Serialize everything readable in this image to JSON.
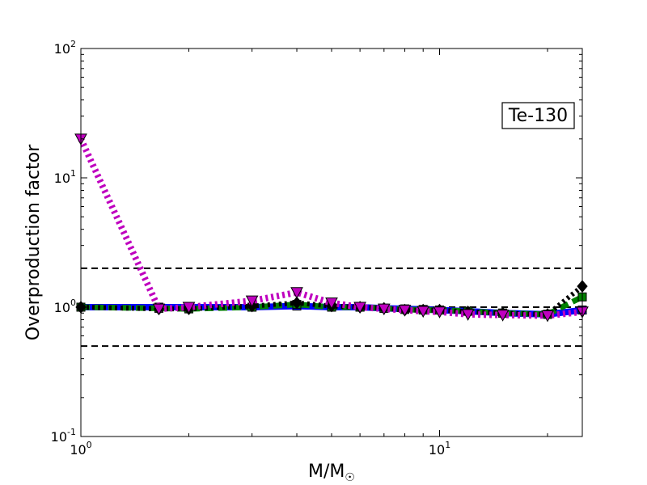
{
  "chart_data": {
    "type": "line",
    "title": "",
    "annotation": "Te-130",
    "xlabel": "M/M",
    "xlabel_symbol": "☉",
    "ylabel": "Overproduction factor",
    "xscale": "log",
    "yscale": "log",
    "xlim": [
      1,
      25
    ],
    "ylim": [
      0.1,
      100
    ],
    "x_ticks": [
      {
        "value": 1,
        "base": "10",
        "exp": "0"
      },
      {
        "value": 10,
        "base": "10",
        "exp": "1"
      }
    ],
    "y_ticks": [
      {
        "value": 0.1,
        "base": "10",
        "exp": "-1"
      },
      {
        "value": 1,
        "base": "10",
        "exp": "0"
      },
      {
        "value": 10,
        "base": "10",
        "exp": "1"
      },
      {
        "value": 100,
        "base": "10",
        "exp": "2"
      }
    ],
    "reference_lines": [
      0.5,
      1,
      2
    ],
    "reference_line_color": "#000000",
    "series": [
      {
        "color": "#0000ff",
        "dash": "solid",
        "marker": "square",
        "x": [
          1,
          1.65,
          2,
          3,
          4,
          5,
          6,
          7,
          8,
          9,
          10,
          12,
          15,
          20,
          25
        ],
        "y": [
          1.0,
          1.0,
          1.0,
          1.0,
          1.02,
          1.0,
          1.0,
          0.98,
          0.97,
          0.96,
          0.95,
          0.93,
          0.9,
          0.88,
          0.95
        ]
      },
      {
        "color": "#008000",
        "dash": "dash",
        "marker": "square",
        "x": [
          1,
          1.65,
          2,
          3,
          4,
          5,
          6,
          7,
          8,
          9,
          10,
          12,
          15,
          20,
          25
        ],
        "y": [
          1.0,
          0.98,
          0.97,
          1.0,
          1.05,
          1.0,
          1.0,
          0.98,
          0.96,
          0.95,
          0.95,
          0.93,
          0.9,
          0.88,
          1.2
        ]
      },
      {
        "color": "#000000",
        "dash": "dot",
        "marker": "diamond",
        "x": [
          1,
          1.65,
          2,
          3,
          4,
          5,
          6,
          7,
          8,
          9,
          10,
          12,
          15,
          20,
          25
        ],
        "y": [
          1.0,
          0.97,
          0.97,
          1.02,
          1.08,
          1.02,
          1.0,
          0.98,
          0.95,
          0.95,
          0.95,
          0.92,
          0.9,
          0.88,
          1.45
        ]
      },
      {
        "color": "#bf00bf",
        "dash": "dot",
        "marker": "triangle-down",
        "x": [
          1,
          1.65,
          2,
          3,
          4,
          5,
          6,
          7,
          8,
          9,
          10,
          12,
          15,
          20,
          25
        ],
        "y": [
          20,
          0.97,
          1.0,
          1.12,
          1.3,
          1.08,
          1.0,
          0.97,
          0.95,
          0.93,
          0.92,
          0.88,
          0.87,
          0.86,
          0.92
        ]
      }
    ]
  }
}
